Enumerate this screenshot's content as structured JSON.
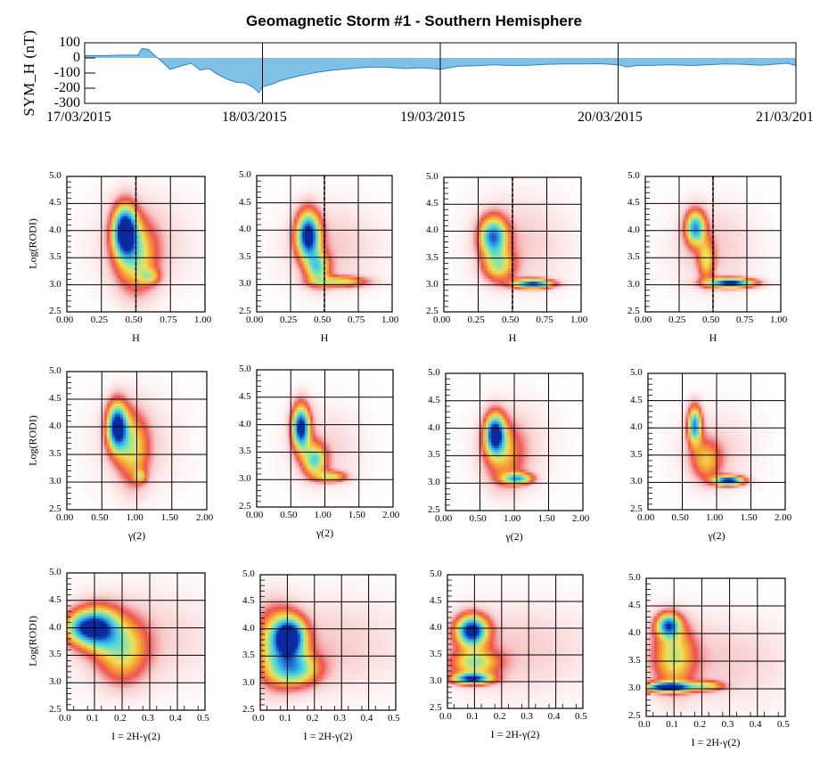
{
  "title": "Geomagnetic Storm #1 - Southern Hemisphere",
  "colors": {
    "symh_fill": "#7fc0e6",
    "symh_line": "#2a84c8",
    "axis": "#000000",
    "colormap": [
      "#ffffff",
      "#f8cccc",
      "#ee5252",
      "#f5a030",
      "#f4e05a",
      "#8ee6a0",
      "#40d0e8",
      "#2a8ae0",
      "#0a2aa0"
    ]
  },
  "chart_data": [
    {
      "type": "area",
      "id": "symh",
      "title": "",
      "ylabel": "SYM_H (nT)",
      "xlabel": "",
      "ylim": [
        -300,
        100
      ],
      "yticks": [
        "100",
        "0",
        "-100",
        "-200",
        "-300"
      ],
      "ytick_values": [
        100,
        0,
        -100,
        -200,
        -300
      ],
      "xlim_days": [
        0,
        4
      ],
      "xticks": [
        "17/03/2015",
        "18/03/2015",
        "19/03/2015",
        "20/03/2015",
        "21/03/201"
      ],
      "xtick_values_days": [
        0,
        1,
        2,
        3,
        4
      ],
      "grid": "vertical at day boundaries",
      "x_days": [
        0,
        0.1,
        0.2,
        0.3,
        0.32,
        0.33,
        0.36,
        0.4,
        0.43,
        0.48,
        0.55,
        0.6,
        0.65,
        0.7,
        0.75,
        0.8,
        0.85,
        0.9,
        0.95,
        0.98,
        1.0,
        1.05,
        1.1,
        1.2,
        1.3,
        1.4,
        1.5,
        1.6,
        1.7,
        1.8,
        1.9,
        2.0,
        2.1,
        2.2,
        2.3,
        2.4,
        2.5,
        2.6,
        2.7,
        2.8,
        2.9,
        3.0,
        3.05,
        3.1,
        3.2,
        3.3,
        3.4,
        3.5,
        3.6,
        3.7,
        3.8,
        3.9,
        3.95,
        4.0
      ],
      "y_nT": [
        15,
        15,
        18,
        18,
        60,
        62,
        55,
        10,
        -20,
        -75,
        -50,
        -35,
        -80,
        -70,
        -110,
        -140,
        -160,
        -165,
        -195,
        -230,
        -190,
        -175,
        -150,
        -120,
        -95,
        -80,
        -70,
        -60,
        -62,
        -70,
        -65,
        -75,
        -55,
        -52,
        -45,
        -50,
        -48,
        -42,
        -40,
        -40,
        -38,
        -45,
        -60,
        -50,
        -48,
        -45,
        -50,
        -45,
        -40,
        -42,
        -48,
        -40,
        -35,
        -50
      ]
    },
    {
      "type": "heatmap",
      "id": "h-1",
      "xlabel": "H",
      "ylabel": "Log(RODI)",
      "xlim": [
        0,
        1
      ],
      "ylim": [
        2.5,
        5.0
      ],
      "xticks": [
        "0.00",
        "0.25",
        "0.50",
        "0.75",
        "1.00"
      ],
      "yticks": [
        "5.0",
        "4.5",
        "4.0",
        "3.5",
        "3.0",
        "2.5"
      ],
      "dashed_vline_x": 0.5,
      "clusters": [
        {
          "x": 0.42,
          "y": 4.0,
          "sx": 0.06,
          "sy": 0.32,
          "w": 1.0
        },
        {
          "x": 0.5,
          "y": 3.5,
          "sx": 0.1,
          "sy": 0.45,
          "w": 0.45
        },
        {
          "x": 0.6,
          "y": 3.15,
          "sx": 0.05,
          "sy": 0.1,
          "w": 0.3
        },
        {
          "x": 0.55,
          "y": 3.8,
          "sx": 0.25,
          "sy": 0.6,
          "w": 0.12
        }
      ]
    },
    {
      "type": "heatmap",
      "id": "h-2",
      "xlabel": "H",
      "ylabel": "",
      "xlim": [
        0,
        1
      ],
      "ylim": [
        2.5,
        5.0
      ],
      "xticks": [
        "0.00",
        "0.25",
        "0.50",
        "0.75",
        "1.00"
      ],
      "yticks": [
        "5.0",
        "4.5",
        "4.0",
        "3.5",
        "3.0",
        "2.5"
      ],
      "dashed_vline_x": 0.5,
      "clusters": [
        {
          "x": 0.38,
          "y": 3.9,
          "sx": 0.06,
          "sy": 0.3,
          "w": 1.0
        },
        {
          "x": 0.45,
          "y": 3.3,
          "sx": 0.06,
          "sy": 0.2,
          "w": 0.55
        },
        {
          "x": 0.62,
          "y": 3.05,
          "sx": 0.14,
          "sy": 0.07,
          "w": 0.45
        },
        {
          "x": 0.55,
          "y": 3.7,
          "sx": 0.25,
          "sy": 0.55,
          "w": 0.12
        }
      ]
    },
    {
      "type": "heatmap",
      "id": "h-3",
      "xlabel": "H",
      "ylabel": "",
      "xlim": [
        0,
        1
      ],
      "ylim": [
        2.5,
        5.0
      ],
      "xticks": [
        "0.00",
        "0.25",
        "0.50",
        "0.75",
        "1.00"
      ],
      "yticks": [
        "5.0",
        "4.5",
        "4.0",
        "3.5",
        "3.0",
        "2.5"
      ],
      "dashed_vline_x": 0.5,
      "clusters": [
        {
          "x": 0.36,
          "y": 3.9,
          "sx": 0.07,
          "sy": 0.25,
          "w": 0.8
        },
        {
          "x": 0.65,
          "y": 3.02,
          "sx": 0.1,
          "sy": 0.06,
          "w": 0.9
        },
        {
          "x": 0.4,
          "y": 3.35,
          "sx": 0.08,
          "sy": 0.2,
          "w": 0.45
        },
        {
          "x": 0.55,
          "y": 3.8,
          "sx": 0.25,
          "sy": 0.6,
          "w": 0.12
        }
      ]
    },
    {
      "type": "heatmap",
      "id": "h-4",
      "xlabel": "H",
      "ylabel": "",
      "xlim": [
        0,
        1
      ],
      "ylim": [
        2.5,
        5.0
      ],
      "xticks": [
        "0.00",
        "0.25",
        "0.50",
        "0.75",
        "1.00"
      ],
      "yticks": [
        "5.0",
        "4.5",
        "4.0",
        "3.5",
        "3.0",
        "2.5"
      ],
      "dashed_vline_x": 0.5,
      "clusters": [
        {
          "x": 0.37,
          "y": 4.05,
          "sx": 0.05,
          "sy": 0.22,
          "w": 0.75
        },
        {
          "x": 0.45,
          "y": 3.45,
          "sx": 0.04,
          "sy": 0.25,
          "w": 0.4
        },
        {
          "x": 0.63,
          "y": 3.03,
          "sx": 0.12,
          "sy": 0.06,
          "w": 1.0
        },
        {
          "x": 0.5,
          "y": 3.7,
          "sx": 0.22,
          "sy": 0.55,
          "w": 0.12
        }
      ]
    },
    {
      "type": "heatmap",
      "id": "g-1",
      "xlabel": "γ(2)",
      "ylabel": "Log(RODI)",
      "xlim": [
        0,
        2
      ],
      "ylim": [
        2.5,
        5.0
      ],
      "xticks": [
        "0.00",
        "0.50",
        "1.00",
        "1.50",
        "2.00"
      ],
      "yticks": [
        "5.0",
        "4.5",
        "4.0",
        "3.5",
        "3.0",
        "2.5"
      ],
      "clusters": [
        {
          "x": 0.72,
          "y": 4.0,
          "sx": 0.1,
          "sy": 0.3,
          "w": 1.0
        },
        {
          "x": 0.95,
          "y": 3.6,
          "sx": 0.15,
          "sy": 0.45,
          "w": 0.4
        },
        {
          "x": 1.05,
          "y": 3.1,
          "sx": 0.06,
          "sy": 0.08,
          "w": 0.3
        },
        {
          "x": 1.0,
          "y": 3.7,
          "sx": 0.45,
          "sy": 0.6,
          "w": 0.1
        }
      ]
    },
    {
      "type": "heatmap",
      "id": "g-2",
      "xlabel": "γ(2)",
      "ylabel": "",
      "xlim": [
        0,
        2
      ],
      "ylim": [
        2.5,
        5.0
      ],
      "xticks": [
        "0.00",
        "0.50",
        "1.00",
        "1.50",
        "2.00"
      ],
      "yticks": [
        "5.0",
        "4.5",
        "4.0",
        "3.5",
        "3.0",
        "2.5"
      ],
      "clusters": [
        {
          "x": 0.65,
          "y": 3.95,
          "sx": 0.09,
          "sy": 0.28,
          "w": 1.0
        },
        {
          "x": 0.85,
          "y": 3.35,
          "sx": 0.12,
          "sy": 0.2,
          "w": 0.6
        },
        {
          "x": 1.1,
          "y": 3.05,
          "sx": 0.15,
          "sy": 0.07,
          "w": 0.45
        },
        {
          "x": 1.0,
          "y": 3.6,
          "sx": 0.4,
          "sy": 0.5,
          "w": 0.1
        }
      ]
    },
    {
      "type": "heatmap",
      "id": "g-3",
      "xlabel": "γ(2)",
      "ylabel": "",
      "xlim": [
        0,
        2
      ],
      "ylim": [
        2.5,
        5.0
      ],
      "xticks": [
        "0.00",
        "0.50",
        "1.00",
        "1.50",
        "2.00"
      ],
      "yticks": [
        "5.0",
        "4.5",
        "4.0",
        "3.5",
        "3.0",
        "2.5"
      ],
      "clusters": [
        {
          "x": 0.72,
          "y": 3.9,
          "sx": 0.1,
          "sy": 0.25,
          "w": 0.95
        },
        {
          "x": 1.05,
          "y": 3.08,
          "sx": 0.15,
          "sy": 0.07,
          "w": 0.65
        },
        {
          "x": 0.85,
          "y": 3.5,
          "sx": 0.2,
          "sy": 0.4,
          "w": 0.3
        },
        {
          "x": 1.0,
          "y": 3.7,
          "sx": 0.4,
          "sy": 0.55,
          "w": 0.1
        }
      ]
    },
    {
      "type": "heatmap",
      "id": "g-4",
      "xlabel": "γ(2)",
      "ylabel": "",
      "xlim": [
        0,
        2
      ],
      "ylim": [
        2.5,
        5.0
      ],
      "xticks": [
        "0.00",
        "0.50",
        "1.00",
        "1.50",
        "2.00"
      ],
      "yticks": [
        "5.0",
        "4.5",
        "4.0",
        "3.5",
        "3.0",
        "2.5"
      ],
      "clusters": [
        {
          "x": 0.68,
          "y": 4.05,
          "sx": 0.07,
          "sy": 0.24,
          "w": 0.78
        },
        {
          "x": 1.18,
          "y": 3.03,
          "sx": 0.15,
          "sy": 0.06,
          "w": 1.0
        },
        {
          "x": 0.85,
          "y": 3.4,
          "sx": 0.15,
          "sy": 0.25,
          "w": 0.35
        },
        {
          "x": 1.0,
          "y": 3.6,
          "sx": 0.4,
          "sy": 0.5,
          "w": 0.1
        }
      ]
    },
    {
      "type": "heatmap",
      "id": "i-1",
      "xlabel": "I = 2H-γ(2)",
      "ylabel": "Log(RODI)",
      "xlim": [
        0,
        0.5
      ],
      "ylim": [
        2.5,
        5.0
      ],
      "xticks": [
        "0.0",
        "0.1",
        "0.2",
        "0.3",
        "0.4",
        "0.5"
      ],
      "yticks": [
        "5.0",
        "4.5",
        "4.0",
        "3.5",
        "3.0",
        "2.5"
      ],
      "clusters": [
        {
          "x": 0.11,
          "y": 4.0,
          "sx": 0.05,
          "sy": 0.25,
          "w": 0.85
        },
        {
          "x": 0.2,
          "y": 3.6,
          "sx": 0.06,
          "sy": 0.4,
          "w": 0.45
        },
        {
          "x": 0.04,
          "y": 4.0,
          "sx": 0.04,
          "sy": 0.2,
          "w": 0.45
        },
        {
          "x": 0.25,
          "y": 3.8,
          "sx": 0.2,
          "sy": 0.6,
          "w": 0.12
        }
      ]
    },
    {
      "type": "heatmap",
      "id": "i-2",
      "xlabel": "I = 2H-γ(2)",
      "ylabel": "",
      "xlim": [
        0,
        0.5
      ],
      "ylim": [
        2.5,
        5.0
      ],
      "xticks": [
        "0.0",
        "0.1",
        "0.2",
        "0.3",
        "0.4",
        "0.5"
      ],
      "yticks": [
        "5.0",
        "4.5",
        "4.0",
        "3.5",
        "3.0",
        "2.5"
      ],
      "clusters": [
        {
          "x": 0.11,
          "y": 3.85,
          "sx": 0.04,
          "sy": 0.25,
          "w": 1.0
        },
        {
          "x": 0.13,
          "y": 3.25,
          "sx": 0.06,
          "sy": 0.22,
          "w": 0.6
        },
        {
          "x": 0.05,
          "y": 3.7,
          "sx": 0.05,
          "sy": 0.5,
          "w": 0.4
        },
        {
          "x": 0.25,
          "y": 3.7,
          "sx": 0.2,
          "sy": 0.6,
          "w": 0.12
        }
      ]
    },
    {
      "type": "heatmap",
      "id": "i-3",
      "xlabel": "I = 2H-γ(2)",
      "ylabel": "",
      "xlim": [
        0,
        0.5
      ],
      "ylim": [
        2.5,
        5.0
      ],
      "xticks": [
        "0.0",
        "0.1",
        "0.2",
        "0.3",
        "0.4",
        "0.5"
      ],
      "yticks": [
        "5.0",
        "4.5",
        "4.0",
        "3.5",
        "3.0",
        "2.5"
      ],
      "clusters": [
        {
          "x": 0.09,
          "y": 3.95,
          "sx": 0.04,
          "sy": 0.2,
          "w": 1.0
        },
        {
          "x": 0.09,
          "y": 3.05,
          "sx": 0.05,
          "sy": 0.07,
          "w": 0.85
        },
        {
          "x": 0.1,
          "y": 3.35,
          "sx": 0.06,
          "sy": 0.18,
          "w": 0.5
        },
        {
          "x": 0.25,
          "y": 3.6,
          "sx": 0.2,
          "sy": 0.6,
          "w": 0.12
        }
      ]
    },
    {
      "type": "heatmap",
      "id": "i-4",
      "xlabel": "I = 2H-γ(2)",
      "ylabel": "",
      "xlim": [
        0,
        0.5
      ],
      "ylim": [
        2.5,
        5.0
      ],
      "xticks": [
        "0.0",
        "0.1",
        "0.2",
        "0.3",
        "0.4",
        "0.5"
      ],
      "yticks": [
        "5.0",
        "4.5",
        "4.0",
        "3.5",
        "3.0",
        "2.5"
      ],
      "clusters": [
        {
          "x": 0.08,
          "y": 4.15,
          "sx": 0.03,
          "sy": 0.15,
          "w": 0.75
        },
        {
          "x": 0.08,
          "y": 3.03,
          "sx": 0.06,
          "sy": 0.06,
          "w": 1.0
        },
        {
          "x": 0.1,
          "y": 3.6,
          "sx": 0.05,
          "sy": 0.4,
          "w": 0.45
        },
        {
          "x": 0.22,
          "y": 3.05,
          "sx": 0.04,
          "sy": 0.06,
          "w": 0.4
        },
        {
          "x": 0.25,
          "y": 3.5,
          "sx": 0.2,
          "sy": 0.55,
          "w": 0.12
        }
      ]
    }
  ]
}
